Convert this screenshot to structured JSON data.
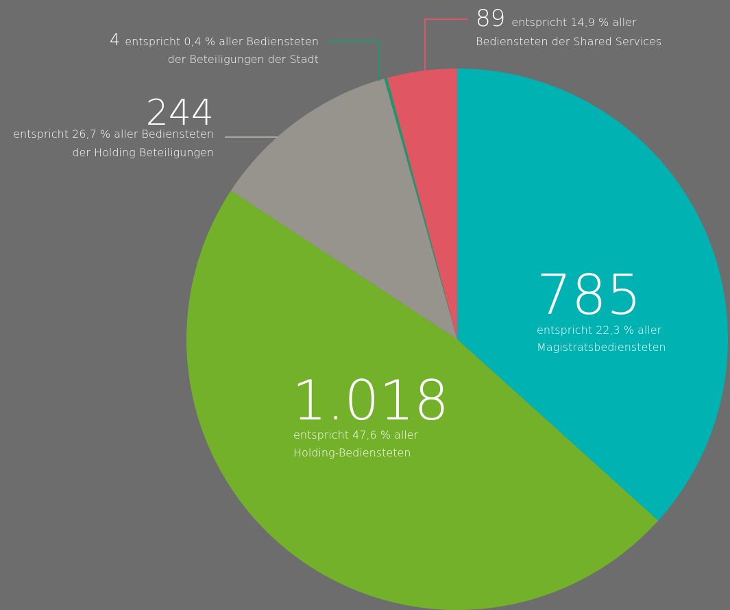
{
  "chart_data": {
    "type": "pie",
    "values": [
      785,
      1018,
      244,
      4,
      89
    ],
    "value_labels": [
      "785",
      "1.018",
      "244",
      "4",
      "89"
    ],
    "descriptions": [
      [
        "entspricht 22,3 % aller",
        "Magistratsbediensteten"
      ],
      [
        "entspricht 47,6 % aller",
        "Holding-Bediensteten"
      ],
      [
        "entspricht 26,7 % aller Bediensteten",
        "der Holding Beteiligungen"
      ],
      [
        "entspricht 0,4 % aller Bediensteten",
        "der Beteiligungen der Stadt"
      ],
      [
        "entspricht 14,9 % aller",
        "Bediensteten der Shared Services"
      ]
    ],
    "colors": [
      "#00b2b2",
      "#74b12a",
      "#96948c",
      "#22956e",
      "#e05663"
    ]
  }
}
